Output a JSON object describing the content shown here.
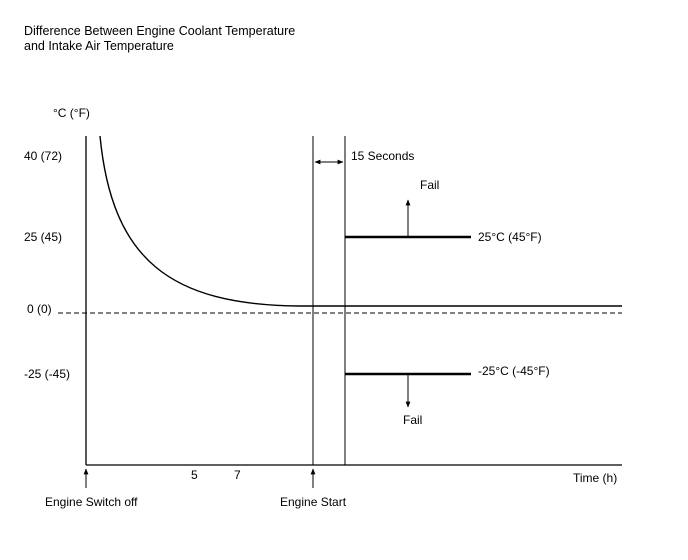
{
  "title": {
    "line1": "Difference Between Engine Coolant Temperature",
    "line2": "and Intake Air Temperature"
  },
  "y_axis": {
    "unit_label": "°C (°F)",
    "ticks": [
      "40 (72)",
      "25 (45)",
      "0 (0)",
      "-25 (-45)"
    ]
  },
  "x_axis": {
    "unit_label": "Time (h)",
    "ticks": [
      "5",
      "7"
    ]
  },
  "events": {
    "engine_switch_off": "Engine Switch off",
    "engine_start": "Engine Start",
    "interval": "15 Seconds"
  },
  "thresholds": {
    "upper": {
      "label": "25°C (45°F)",
      "fail_label": "Fail"
    },
    "lower": {
      "label": "-25°C (-45°F)",
      "fail_label": "Fail"
    }
  },
  "colors": {
    "line": "#000000",
    "background": "#ffffff"
  }
}
